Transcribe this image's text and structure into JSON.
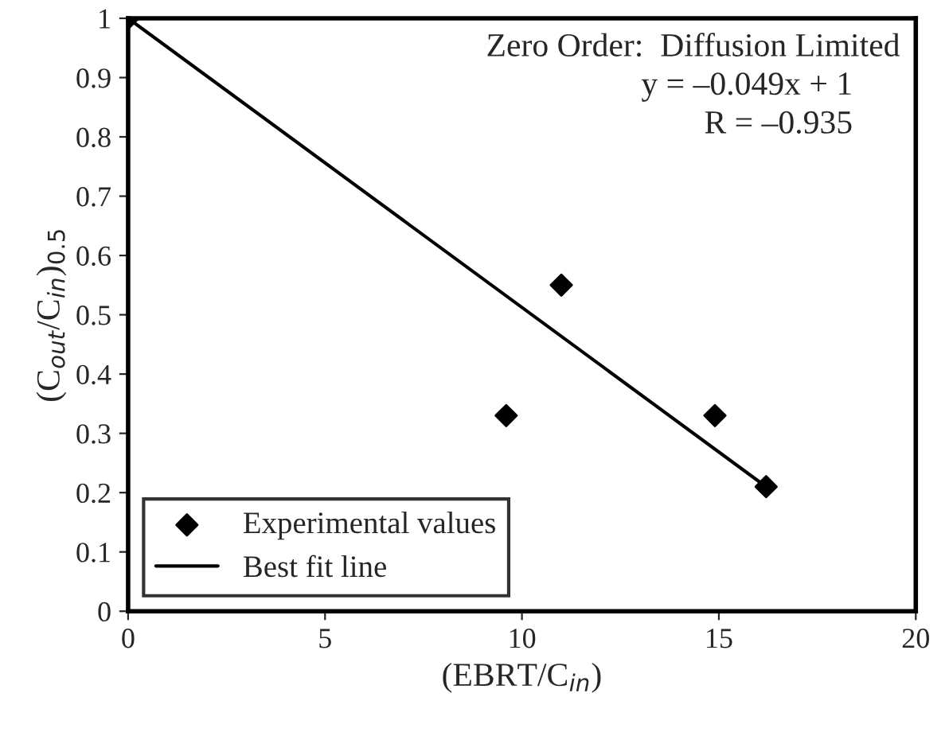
{
  "chart_data": {
    "type": "scatter",
    "xlabel": "(EBRT/C$_{in}$)",
    "ylabel": "(C$_{out}$/C$_{in}$)$_{0.5}$",
    "annotations": [
      "Zero Order:  Diffusion Limited",
      "y = –0.049x + 1",
      "R = –0.935"
    ],
    "series": [
      {
        "name": "Experimental values",
        "color": "#000000",
        "marker": "diamond",
        "x": [
          0,
          9.6,
          11,
          14.9,
          16.2
        ],
        "values": [
          1,
          0.33,
          0.55,
          0.33,
          0.21
        ]
      },
      {
        "name": "Best fit line",
        "type": "line",
        "color": "#000000",
        "marker": "none",
        "line_style": "solid",
        "x": [
          0,
          16.2
        ],
        "values": [
          1,
          0.21
        ]
      }
    ],
    "xlim": [
      0,
      20
    ],
    "xticks": [
      0,
      5,
      10,
      15,
      20
    ],
    "ylim": [
      0,
      1
    ],
    "yticks": [
      0,
      0.1,
      0.2,
      0.3,
      0.4,
      0.5,
      0.6,
      0.7,
      0.8,
      0.9,
      1
    ],
    "grid": false,
    "legend": "bottom left"
  }
}
